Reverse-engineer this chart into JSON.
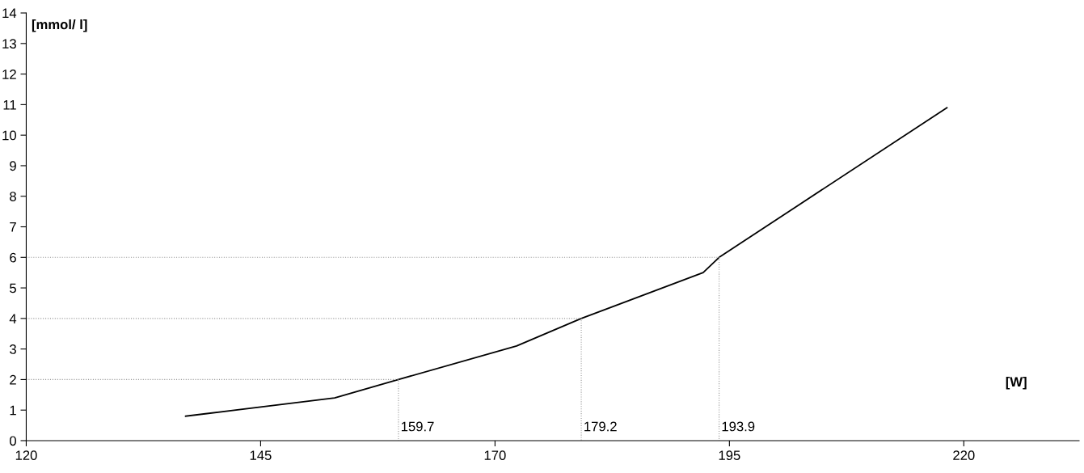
{
  "chart_data": {
    "type": "line",
    "xlabel": "[W]",
    "ylabel": "[mmol/ l]",
    "x": [
      137,
      152.9,
      159.7,
      172.3,
      179.2,
      192.2,
      193.9,
      218.2
    ],
    "series": [
      {
        "color": "#000000",
        "values": [
          0.8,
          1.4,
          2,
          3.1,
          4,
          5.5,
          6,
          10.9
        ]
      },
      {
        "color": "#999999",
        "line_style": "dotted",
        "x": [
          120,
          159.7,
          159.7
        ],
        "values": [
          2,
          2,
          0
        ]
      },
      {
        "color": "#999999",
        "line_style": "dotted",
        "x": [
          120,
          179.2,
          179.2
        ],
        "values": [
          4,
          4,
          0
        ]
      },
      {
        "color": "#999999",
        "line_style": "dotted",
        "x": [
          120,
          193.9,
          193.9
        ],
        "values": [
          6,
          6,
          0
        ]
      }
    ],
    "xlim": [
      120,
      232.3
    ],
    "xticks": [
      120,
      145,
      170,
      195,
      220
    ],
    "ylim": [
      0,
      14
    ],
    "yticks": [
      0,
      1,
      2,
      3,
      4,
      5,
      6,
      7,
      8,
      9,
      10,
      11,
      12,
      13,
      14
    ],
    "annotations": [
      {
        "text": "159.7",
        "x": 159.7,
        "y": 0
      },
      {
        "text": "179.2",
        "x": 179.2,
        "y": 0
      },
      {
        "text": "193.9",
        "x": 193.9,
        "y": 0
      }
    ],
    "grid": false,
    "marker": "none",
    "line_style": "solid"
  }
}
